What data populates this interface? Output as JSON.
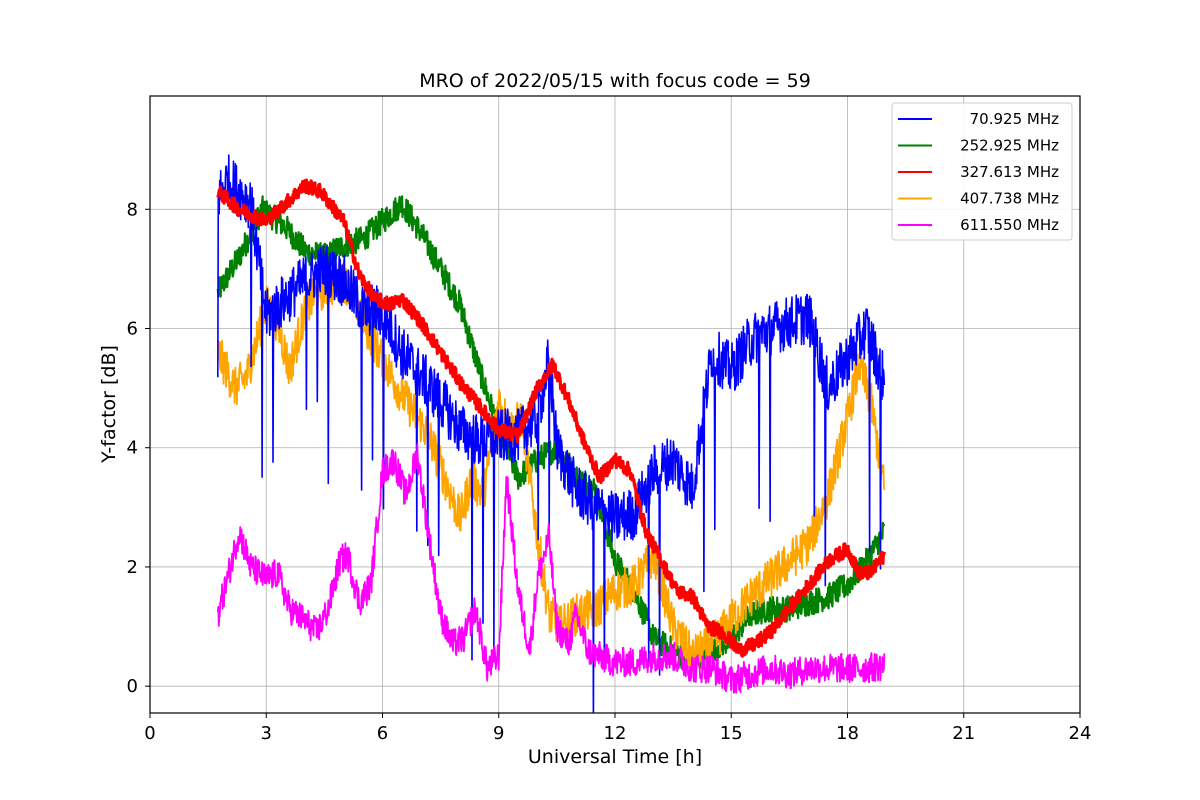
{
  "chart_data": {
    "type": "line",
    "title": "MRO of 2022/05/15 with focus code = 59",
    "xlabel": "Universal Time [h]",
    "ylabel": "Y-factor [dB]",
    "xlim": [
      0,
      24
    ],
    "ylim": [
      -0.45,
      9.9
    ],
    "xticks": [
      0,
      3,
      6,
      9,
      12,
      15,
      18,
      21,
      24
    ],
    "yticks": [
      0,
      2,
      4,
      6,
      8
    ],
    "grid": true,
    "legend_position": "top-right",
    "series": [
      {
        "name": "70.925 MHz",
        "color": "#0000ff",
        "x": [
          1.75,
          2.0,
          2.3,
          2.6,
          3.0,
          3.5,
          4.0,
          4.5,
          5.0,
          5.5,
          6.0,
          6.5,
          7.0,
          7.5,
          8.0,
          8.5,
          9.0,
          9.5,
          10.0,
          10.3,
          10.5,
          11.0,
          11.5,
          12.0,
          12.5,
          13.0,
          13.5,
          14.0,
          14.5,
          15.0,
          15.5,
          16.0,
          16.5,
          17.0,
          17.5,
          18.0,
          18.5,
          18.95
        ],
        "y": [
          8.2,
          8.5,
          8.3,
          8.1,
          6.2,
          6.5,
          6.8,
          7.0,
          6.8,
          6.3,
          6.3,
          5.6,
          5.2,
          4.8,
          4.3,
          4.1,
          4.2,
          4.2,
          4.5,
          5.5,
          4.0,
          3.3,
          3.0,
          2.8,
          2.9,
          3.6,
          3.8,
          3.3,
          5.6,
          5.3,
          5.8,
          6.0,
          6.1,
          6.2,
          5.0,
          5.5,
          6.0,
          5.1
        ],
        "dip_depth": 3.6
      },
      {
        "name": "252.925 MHz",
        "color": "#008000",
        "x": [
          1.75,
          2.3,
          2.9,
          3.5,
          4.0,
          4.5,
          5.0,
          5.5,
          6.0,
          6.5,
          7.0,
          7.5,
          8.0,
          8.5,
          9.0,
          9.5,
          10.0,
          10.5,
          11.0,
          11.5,
          12.0,
          12.5,
          13.0,
          13.5,
          14.0,
          14.5,
          15.0,
          15.5,
          16.0,
          16.5,
          17.0,
          17.5,
          18.0,
          18.5,
          18.95
        ],
        "y": [
          6.6,
          7.2,
          8.0,
          7.7,
          7.3,
          7.2,
          7.4,
          7.5,
          7.8,
          8.1,
          7.6,
          7.0,
          6.4,
          5.3,
          4.3,
          3.5,
          3.8,
          4.0,
          3.5,
          3.3,
          2.1,
          1.6,
          0.8,
          0.6,
          0.4,
          0.6,
          0.8,
          1.2,
          1.3,
          1.3,
          1.4,
          1.5,
          1.7,
          2.1,
          2.6
        ]
      },
      {
        "name": "327.613 MHz",
        "color": "#ff0000",
        "x": [
          1.75,
          2.3,
          3.0,
          3.5,
          4.0,
          4.4,
          5.0,
          5.4,
          5.8,
          6.2,
          6.5,
          7.0,
          7.5,
          8.0,
          8.5,
          9.0,
          9.5,
          10.0,
          10.4,
          10.8,
          11.2,
          11.6,
          12.0,
          12.4,
          12.8,
          13.2,
          13.6,
          14.0,
          14.4,
          14.8,
          15.2,
          15.6,
          16.0,
          16.5,
          17.0,
          17.5,
          18.0,
          18.3,
          18.6,
          18.95
        ],
        "y": [
          8.3,
          8.0,
          7.8,
          8.1,
          8.4,
          8.3,
          7.8,
          6.9,
          6.5,
          6.4,
          6.5,
          6.1,
          5.6,
          5.1,
          4.7,
          4.3,
          4.2,
          5.0,
          5.4,
          4.8,
          4.1,
          3.5,
          3.8,
          3.6,
          2.6,
          2.1,
          1.6,
          1.5,
          1.0,
          0.9,
          0.6,
          0.7,
          0.9,
          1.3,
          1.7,
          2.1,
          2.3,
          1.9,
          1.9,
          2.2
        ]
      },
      {
        "name": "407.738 MHz",
        "color": "#ffa500",
        "x": [
          1.75,
          2.2,
          2.5,
          3.0,
          3.3,
          3.6,
          4.0,
          4.3,
          4.6,
          5.0,
          5.3,
          5.6,
          6.0,
          6.4,
          6.8,
          7.2,
          7.6,
          8.0,
          8.3,
          8.6,
          9.0,
          9.3,
          9.6,
          10.0,
          10.3,
          10.6,
          11.0,
          11.5,
          12.0,
          12.5,
          13.0,
          13.5,
          14.0,
          14.5,
          15.0,
          15.5,
          16.0,
          16.5,
          17.0,
          17.5,
          18.0,
          18.3,
          18.6,
          18.95
        ],
        "y": [
          5.6,
          5.0,
          5.2,
          6.4,
          6.1,
          5.3,
          6.3,
          6.6,
          6.7,
          6.8,
          6.5,
          6.0,
          5.5,
          5.0,
          4.6,
          4.2,
          3.5,
          2.8,
          3.5,
          3.2,
          4.8,
          4.3,
          4.5,
          2.5,
          1.2,
          1.0,
          1.2,
          1.3,
          1.6,
          1.7,
          2.2,
          1.0,
          0.5,
          0.7,
          1.1,
          1.5,
          1.8,
          2.1,
          2.4,
          3.2,
          4.5,
          5.4,
          4.8,
          3.3
        ]
      },
      {
        "name": "611.550 MHz",
        "color": "#ff00ff",
        "x": [
          1.75,
          2.0,
          2.3,
          2.6,
          3.0,
          3.3,
          3.6,
          4.0,
          4.3,
          4.6,
          4.9,
          5.1,
          5.4,
          5.7,
          6.0,
          6.3,
          6.6,
          6.9,
          7.2,
          7.5,
          7.8,
          8.1,
          8.4,
          8.7,
          9.0,
          9.2,
          9.5,
          9.8,
          10.0,
          10.3,
          10.5,
          10.8,
          11.0,
          11.3,
          11.6,
          12.0,
          12.5,
          13.0,
          13.5,
          14.0,
          14.5,
          15.0,
          15.5,
          16.0,
          16.5,
          17.0,
          17.5,
          18.0,
          18.5,
          18.95
        ],
        "y": [
          1.2,
          1.8,
          2.6,
          2.0,
          1.8,
          1.9,
          1.3,
          1.1,
          0.9,
          1.3,
          2.1,
          2.2,
          1.4,
          1.7,
          3.6,
          3.8,
          3.2,
          3.9,
          2.5,
          1.2,
          0.7,
          0.8,
          1.3,
          0.3,
          0.5,
          3.5,
          1.6,
          0.6,
          1.8,
          2.5,
          1.0,
          0.7,
          1.2,
          0.6,
          0.5,
          0.4,
          0.4,
          0.5,
          0.5,
          0.3,
          0.3,
          0.1,
          0.2,
          0.3,
          0.2,
          0.3,
          0.3,
          0.3,
          0.3,
          0.35
        ]
      }
    ]
  }
}
